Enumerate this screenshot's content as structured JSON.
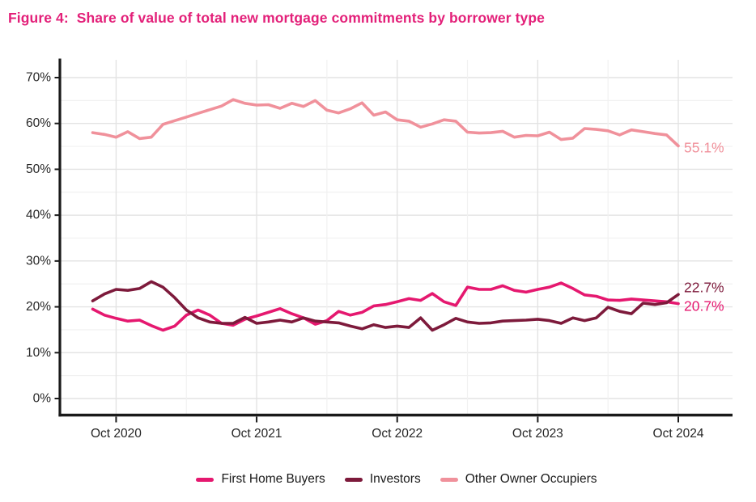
{
  "header": {
    "title": "Figure 4:  Share of value of total new mortgage commitments by borrower type",
    "color": "#e32079"
  },
  "chart_data": {
    "type": "line",
    "title": "Share of value of total new mortgage commitments by borrower type",
    "xlabel": "",
    "ylabel": "",
    "ylim": [
      0,
      70
    ],
    "y_ticks": [
      0,
      10,
      20,
      30,
      40,
      50,
      60,
      70
    ],
    "y_tick_suffix": "%",
    "grid": {
      "major": true,
      "minor": true
    },
    "legend_position": "bottom",
    "x": [
      "Aug 2020",
      "Sep 2020",
      "Oct 2020",
      "Nov 2020",
      "Dec 2020",
      "Jan 2021",
      "Feb 2021",
      "Mar 2021",
      "Apr 2021",
      "May 2021",
      "Jun 2021",
      "Jul 2021",
      "Aug 2021",
      "Sep 2021",
      "Oct 2021",
      "Nov 2021",
      "Dec 2021",
      "Jan 2022",
      "Feb 2022",
      "Mar 2022",
      "Apr 2022",
      "May 2022",
      "Jun 2022",
      "Jul 2022",
      "Aug 2022",
      "Sep 2022",
      "Oct 2022",
      "Nov 2022",
      "Dec 2022",
      "Jan 2023",
      "Feb 2023",
      "Mar 2023",
      "Apr 2023",
      "May 2023",
      "Jun 2023",
      "Jul 2023",
      "Aug 2023",
      "Sep 2023",
      "Oct 2023",
      "Nov 2023",
      "Dec 2023",
      "Jan 2024",
      "Feb 2024",
      "Mar 2024",
      "Apr 2024",
      "May 2024",
      "Jun 2024",
      "Jul 2024",
      "Aug 2024",
      "Sep 2024",
      "Oct 2024"
    ],
    "x_tick_labels": [
      "Oct 2020",
      "Oct 2021",
      "Oct 2022",
      "Oct 2023",
      "Oct 2024"
    ],
    "x_tick_indices": [
      2,
      14,
      26,
      38,
      50
    ],
    "x_minor_tick_indices": [
      8,
      20,
      32,
      44
    ],
    "series": [
      {
        "name": "First Home Buyers",
        "color": "#e5186f",
        "end_label": "20.7%",
        "values": [
          19.5,
          18.2,
          17.5,
          16.9,
          17.1,
          15.9,
          14.9,
          15.8,
          18.2,
          19.3,
          18.2,
          16.4,
          16.0,
          17.3,
          18.0,
          18.8,
          19.6,
          18.5,
          17.6,
          16.2,
          17.0,
          19.0,
          18.2,
          18.8,
          20.2,
          20.5,
          21.1,
          21.8,
          21.4,
          22.9,
          21.1,
          20.3,
          24.3,
          23.8,
          23.8,
          24.6,
          23.6,
          23.2,
          23.8,
          24.3,
          25.2,
          24.0,
          22.6,
          22.3,
          21.5,
          21.4,
          21.7,
          21.5,
          21.3,
          21.1,
          20.7
        ]
      },
      {
        "name": "Investors",
        "color": "#7d1a3b",
        "end_label": "22.7%",
        "values": [
          21.3,
          22.8,
          23.8,
          23.6,
          24.0,
          25.5,
          24.3,
          22.0,
          19.3,
          17.6,
          16.7,
          16.4,
          16.4,
          17.7,
          16.4,
          16.7,
          17.1,
          16.7,
          17.6,
          16.9,
          16.7,
          16.5,
          15.8,
          15.2,
          16.1,
          15.5,
          15.8,
          15.5,
          17.6,
          14.9,
          16.1,
          17.5,
          16.7,
          16.4,
          16.5,
          16.9,
          17.0,
          17.1,
          17.3,
          17.0,
          16.4,
          17.6,
          17.0,
          17.6,
          19.9,
          19.0,
          18.5,
          20.8,
          20.5,
          20.9,
          22.7
        ]
      },
      {
        "name": "Other Owner Occupiers",
        "color": "#f0919b",
        "end_label": "55.1%",
        "values": [
          58.0,
          57.6,
          57.0,
          58.2,
          56.7,
          57.0,
          59.8,
          60.6,
          61.4,
          62.2,
          63.0,
          63.8,
          65.2,
          64.4,
          64.0,
          64.1,
          63.3,
          64.4,
          63.7,
          65.0,
          62.9,
          62.3,
          63.2,
          64.5,
          61.8,
          62.5,
          60.8,
          60.5,
          59.2,
          59.9,
          60.8,
          60.5,
          58.1,
          57.9,
          58.0,
          58.3,
          57.0,
          57.4,
          57.3,
          58.1,
          56.5,
          56.8,
          58.9,
          58.7,
          58.4,
          57.5,
          58.6,
          58.2,
          57.8,
          57.5,
          55.1
        ]
      }
    ],
    "colors": {
      "axis": "#1a1a1a",
      "tick_label": "#262626",
      "grid_major": "#e3e3e3",
      "grid_minor": "#f1f1f1"
    }
  }
}
